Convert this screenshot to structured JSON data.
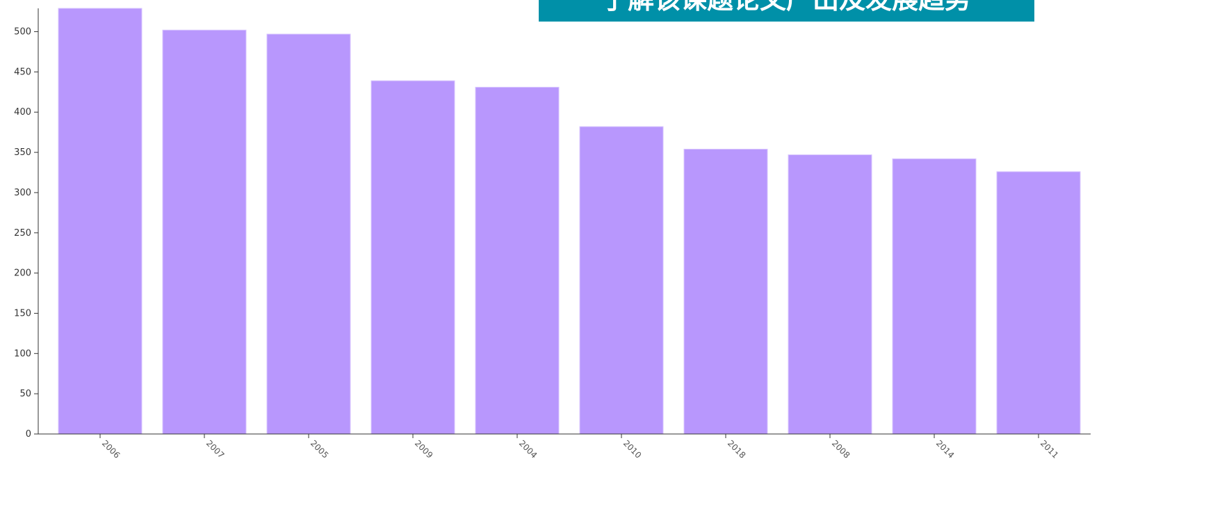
{
  "chart_data": {
    "type": "bar",
    "title": "了解该课题论文产出及发展趋势",
    "categories": [
      "2006",
      "2007",
      "2005",
      "2009",
      "2004",
      "2010",
      "2018",
      "2008",
      "2014",
      "2011"
    ],
    "values": [
      529,
      502,
      497,
      439,
      431,
      382,
      354,
      347,
      342,
      326
    ],
    "color": "#b897fd",
    "ylim": [
      0,
      529
    ],
    "yticks": [
      0,
      50,
      100,
      150,
      200,
      250,
      300,
      350,
      400,
      450,
      500
    ]
  }
}
